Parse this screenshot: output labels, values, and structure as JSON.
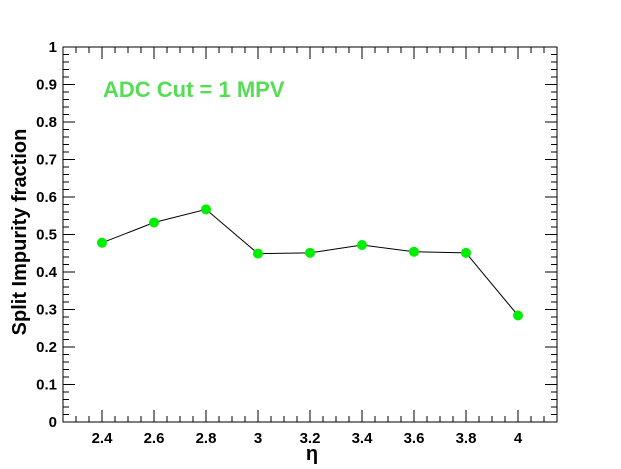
{
  "chart_data": {
    "type": "line",
    "title": "",
    "xlabel": "η",
    "ylabel": "Split Impurity fraction",
    "xlim": [
      2.25,
      4.15
    ],
    "ylim": [
      0,
      1
    ],
    "x_ticks": [
      "2.4",
      "2.6",
      "2.8",
      "3",
      "3.2",
      "3.4",
      "3.6",
      "3.8",
      "4"
    ],
    "y_ticks": [
      "0",
      "0.1",
      "0.2",
      "0.3",
      "0.4",
      "0.5",
      "0.6",
      "0.7",
      "0.8",
      "0.9",
      "1"
    ],
    "grid": false,
    "annotation": "ADC Cut = 1 MPV",
    "colors": {
      "marker": "#00ee00",
      "line": "#000000",
      "annotation": "#55dd55"
    },
    "series": [
      {
        "x": [
          2.4,
          2.6,
          2.8,
          3.0,
          3.2,
          3.4,
          3.6,
          3.8,
          4.0
        ],
        "y": [
          0.478,
          0.532,
          0.567,
          0.449,
          0.451,
          0.472,
          0.454,
          0.451,
          0.284
        ]
      }
    ]
  }
}
